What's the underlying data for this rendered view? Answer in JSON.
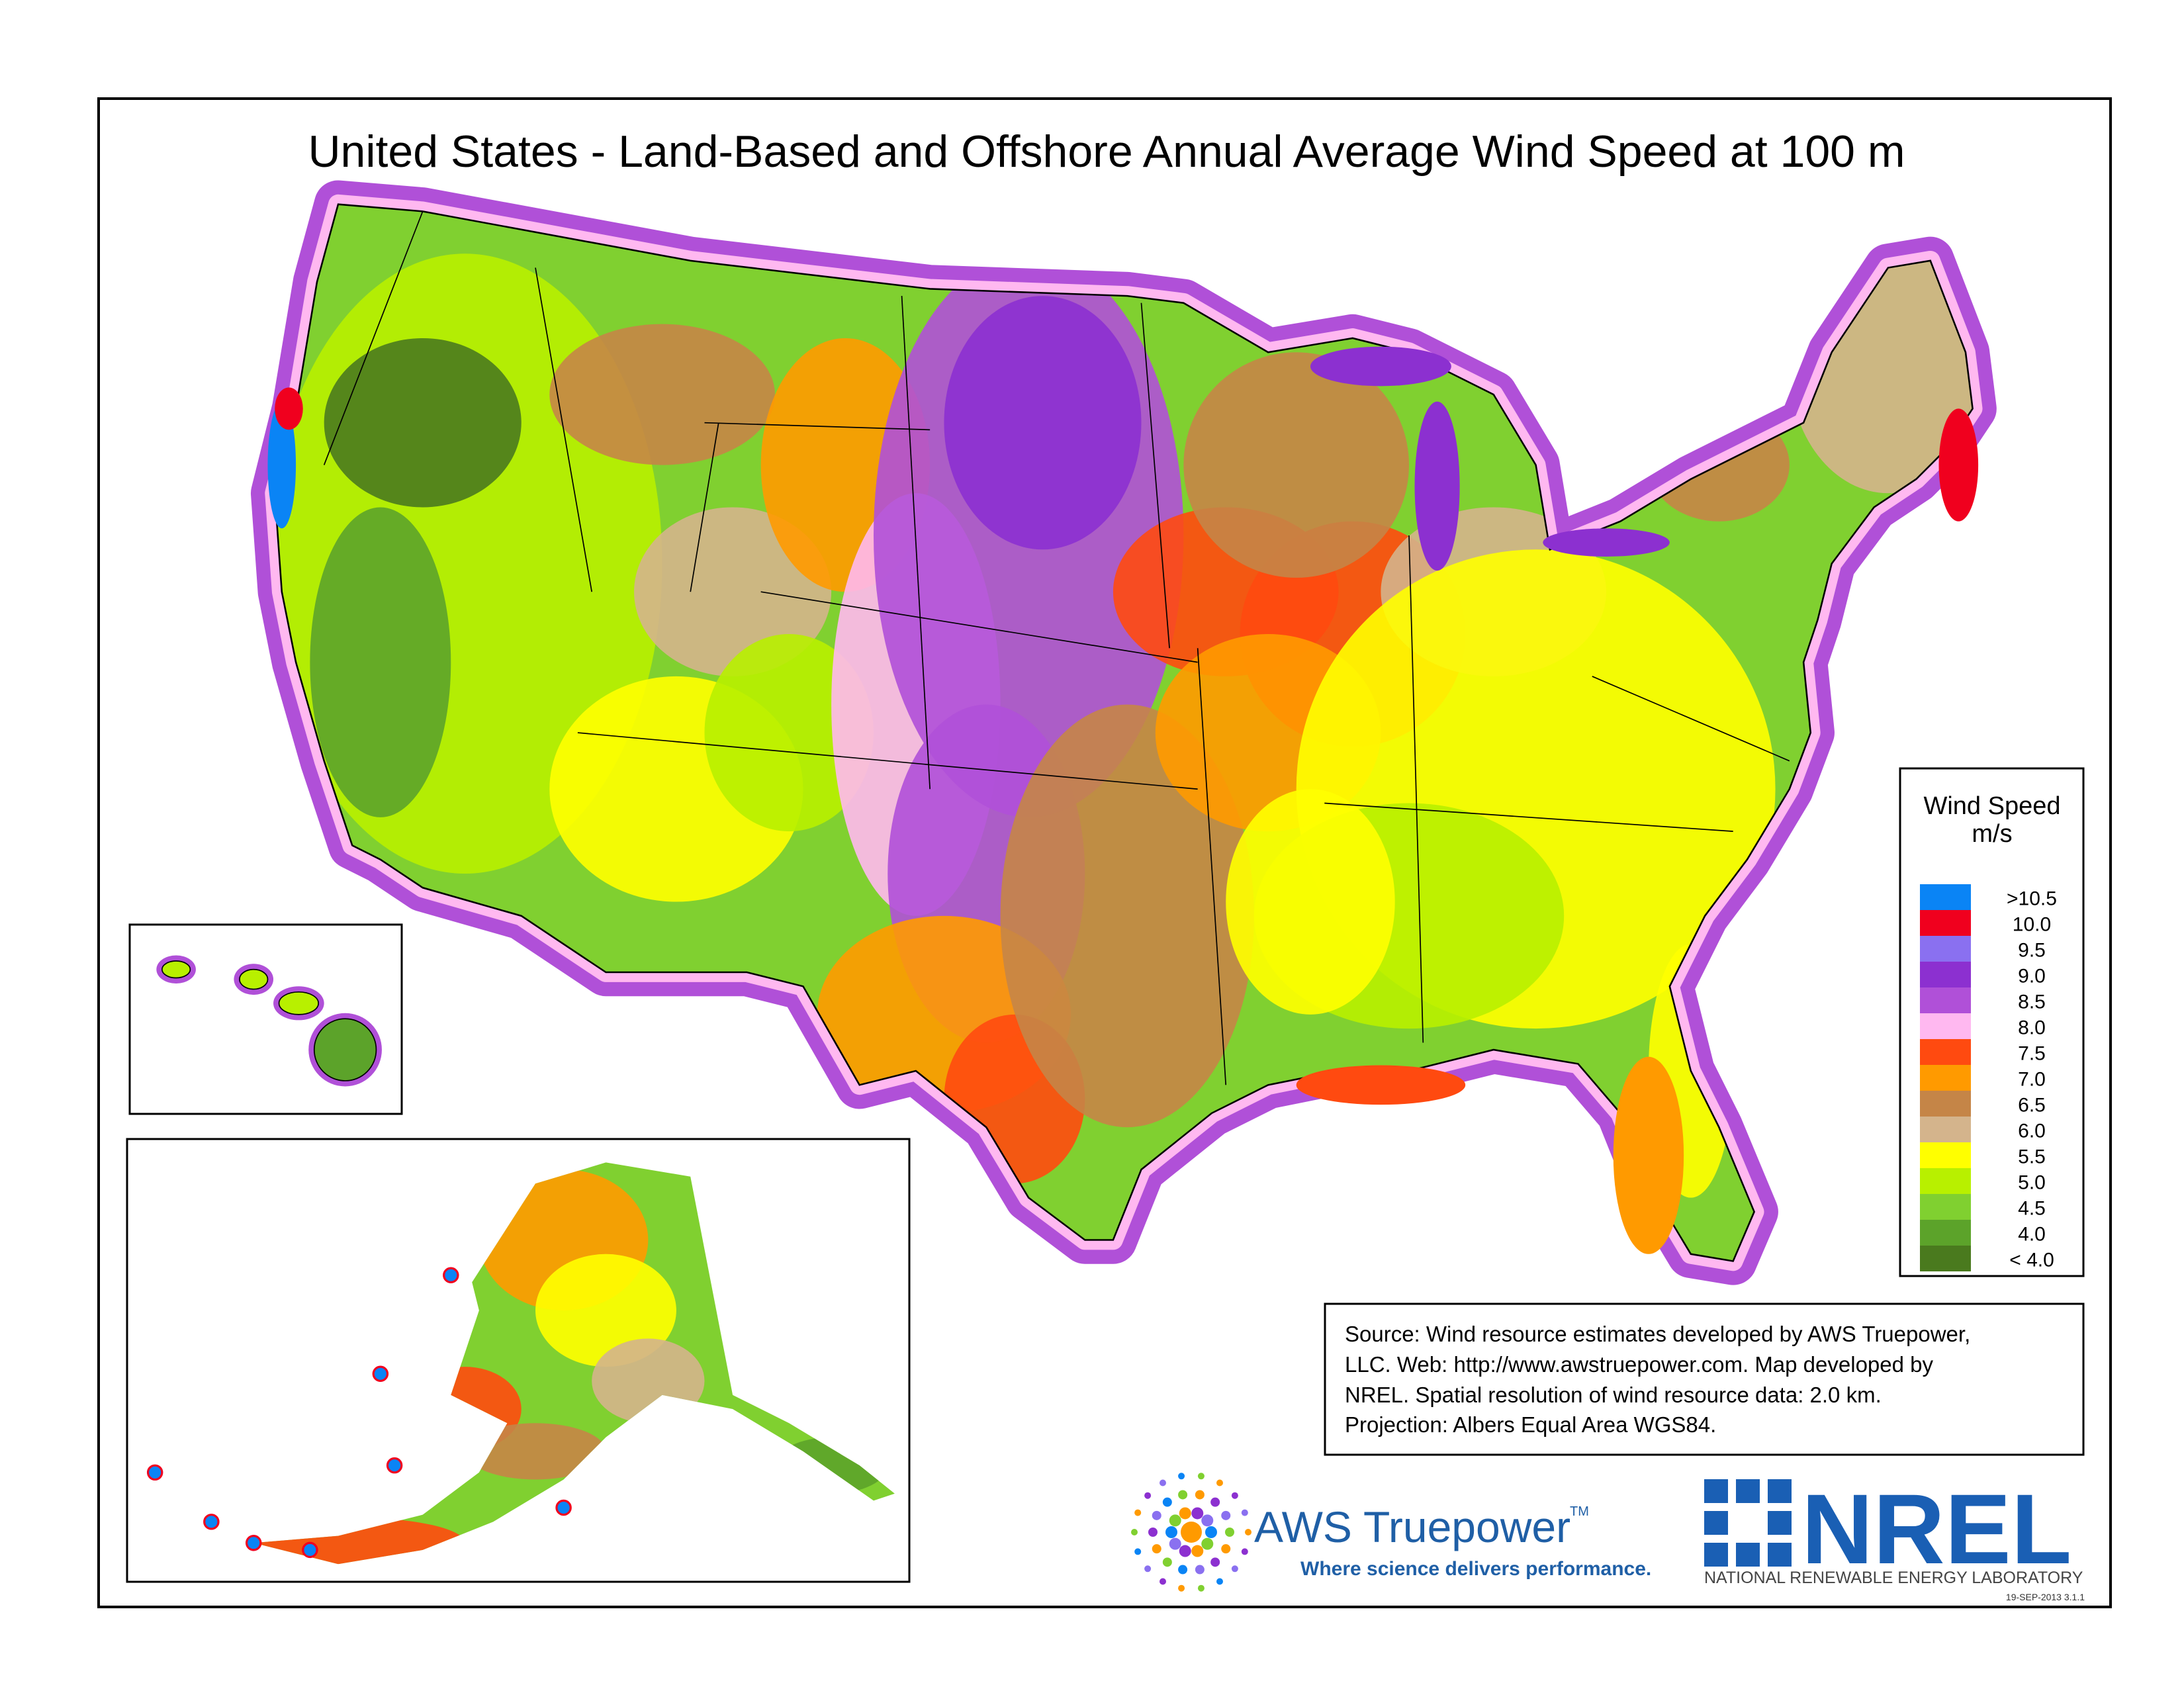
{
  "title": "United States - Land-Based and Offshore Annual Average Wind Speed at 100 m",
  "legend": {
    "title": "Wind Speed",
    "unit": "m/s",
    "items": [
      {
        "label": ">10.5",
        "color": "#0a84f5"
      },
      {
        "label": "10.0",
        "color": "#f0001e"
      },
      {
        "label": "9.5",
        "color": "#8a70f0"
      },
      {
        "label": "9.0",
        "color": "#8c30d0"
      },
      {
        "label": "8.5",
        "color": "#b050d8"
      },
      {
        "label": "8.0",
        "color": "#ffb8f0"
      },
      {
        "label": "7.5",
        "color": "#ff4a10"
      },
      {
        "label": "7.0",
        "color": "#ff9a00"
      },
      {
        "label": "6.5",
        "color": "#c58547"
      },
      {
        "label": "6.0",
        "color": "#d4b48c"
      },
      {
        "label": "5.5",
        "color": "#ffff00"
      },
      {
        "label": "5.0",
        "color": "#b8f000"
      },
      {
        "label": "4.5",
        "color": "#80d030"
      },
      {
        "label": "4.0",
        "color": "#5ca32a"
      },
      {
        "label": "< 4.0",
        "color": "#4a7a1e"
      }
    ]
  },
  "source": {
    "lines": [
      "Source: Wind resource estimates developed by AWS Truepower,",
      "LLC.  Web: http://www.awstruepower.com. Map developed by",
      "NREL.  Spatial resolution of wind resource data: 2.0 km.",
      "Projection: Albers Equal Area WGS84."
    ]
  },
  "logos": {
    "aws": {
      "name": "AWS Truepower",
      "trademark": "TM",
      "tagline": "Where science delivers performance."
    },
    "nrel": {
      "name": "NREL",
      "subtitle": "NATIONAL RENEWABLE ENERGY LABORATORY"
    }
  },
  "stamp": "19-SEP-2013 3.1.1"
}
